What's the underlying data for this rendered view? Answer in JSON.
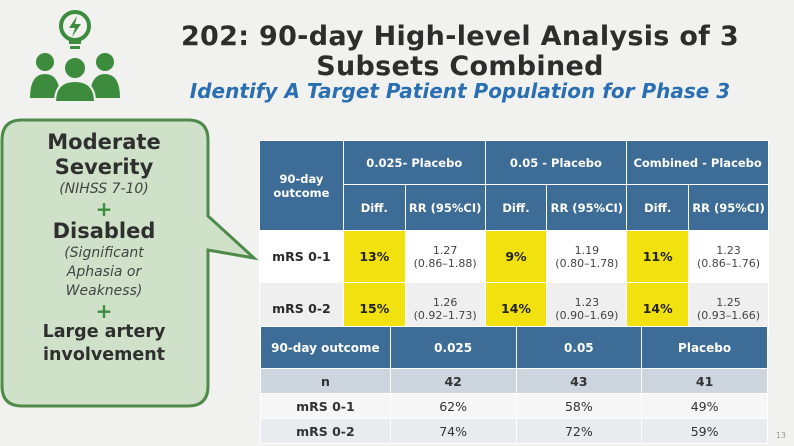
{
  "header": {
    "title_line1": "202: 90-day High-level Analysis of 3",
    "title_line2": "Subsets Combined",
    "subtitle": "Identify A Target Patient Population for Phase 3"
  },
  "colors": {
    "accent_green": "#3d8c3d",
    "table_header": "#3d6d96",
    "highlight_yellow": "#f1e20f",
    "subtitle_blue": "#2a6fb2"
  },
  "bubble": {
    "line1": "Moderate",
    "line2": "Severity",
    "nihss": "(NIHSS 7-10)",
    "plus1": "+",
    "disabled": "Disabled",
    "sig1": "(Significant",
    "sig2": "Aphasia or",
    "sig3": "Weakness)",
    "plus2": "+",
    "large1": "Large artery",
    "large2": "involvement"
  },
  "table1": {
    "outcome_header": "90-day outcome",
    "group_headers": [
      "0.025- Placebo",
      "0.05 - Placebo",
      "Combined - Placebo"
    ],
    "sub_diff": "Diff.",
    "sub_rr": "RR (95%CI)",
    "rows": [
      {
        "label": "mRS 0-1",
        "cells": [
          {
            "diff": "13%",
            "rr": "1.27",
            "ci": "(0.86–1.88)"
          },
          {
            "diff": "9%",
            "rr": "1.19",
            "ci": "(0.80–1.78)"
          },
          {
            "diff": "11%",
            "rr": "1.23",
            "ci": "(0.86–1.76)"
          }
        ]
      },
      {
        "label": "mRS 0-2",
        "cells": [
          {
            "diff": "15%",
            "rr": "1.26",
            "ci": "(0.92–1.73)"
          },
          {
            "diff": "14%",
            "rr": "1.23",
            "ci": "(0.90–1.69)"
          },
          {
            "diff": "14%",
            "rr": "1.25",
            "ci": "(0.93–1.66)"
          }
        ]
      }
    ]
  },
  "table2": {
    "headers": [
      "90-day outcome",
      "0.025",
      "0.05",
      "Placebo"
    ],
    "rows": [
      [
        "n",
        "42",
        "43",
        "41"
      ],
      [
        "mRS 0-1",
        "62%",
        "58%",
        "49%"
      ],
      [
        "mRS 0-2",
        "74%",
        "72%",
        "59%"
      ]
    ]
  },
  "slide_number": "13"
}
